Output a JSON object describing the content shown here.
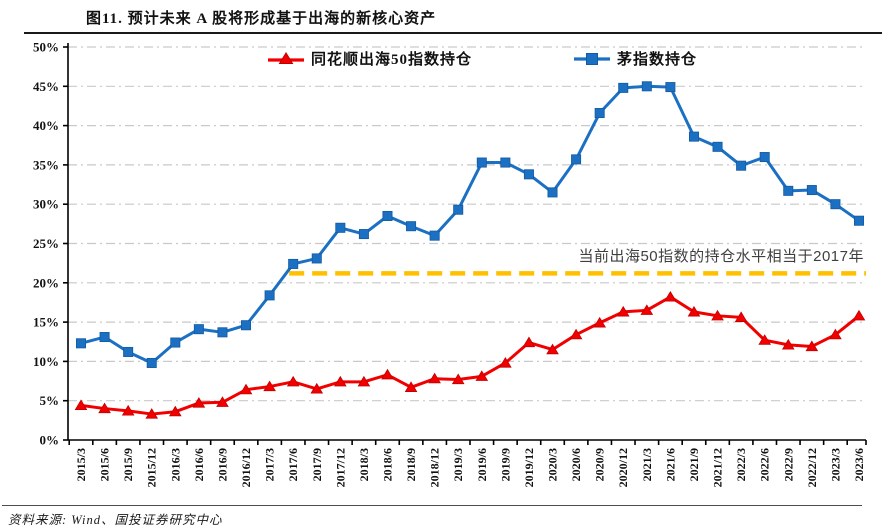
{
  "title": "图11. 预计未来 A 股将形成基于出海的新核心资产",
  "footer": {
    "source_text": "资料来源: Wind、国投证券研究中心"
  },
  "colors": {
    "red_series": "#f20000",
    "red_marker_edge": "#c00000",
    "blue_series": "#1b70c4",
    "blue_marker_edge": "#135a9e",
    "reference_line": "#ffc000",
    "gridline": "#c9c9c9",
    "axis": "#000000",
    "annotation_text": "#3f3f3f"
  },
  "chart_data": {
    "type": "line",
    "title": "图11. 预计未来 A 股将形成基于出海的新核心资产",
    "categories": [
      "2015/3",
      "2015/6",
      "2015/9",
      "2015/12",
      "2016/3",
      "2016/6",
      "2016/9",
      "2016/12",
      "2017/3",
      "2017/6",
      "2017/9",
      "2017/12",
      "2018/3",
      "2018/6",
      "2018/9",
      "2018/12",
      "2019/3",
      "2019/6",
      "2019/9",
      "2019/12",
      "2020/3",
      "2020/6",
      "2020/9",
      "2020/12",
      "2021/3",
      "2021/6",
      "2021/9",
      "2021/12",
      "2022/3",
      "2022/6",
      "2022/9",
      "2022/12",
      "2023/3",
      "2023/6"
    ],
    "series": [
      {
        "name": "同花顺出海50指数持仓",
        "marker": "triangle",
        "color": "#f20000",
        "values": [
          4.4,
          4.0,
          3.7,
          3.3,
          3.6,
          4.7,
          4.8,
          6.4,
          6.8,
          7.4,
          6.5,
          7.4,
          7.4,
          8.3,
          6.7,
          7.8,
          7.7,
          8.1,
          9.8,
          12.4,
          11.5,
          13.4,
          14.9,
          16.3,
          16.5,
          18.2,
          16.3,
          15.8,
          15.6,
          12.7,
          12.1,
          11.9,
          13.4,
          15.8
        ]
      },
      {
        "name": "茅指数持仓",
        "marker": "square",
        "color": "#1b70c4",
        "values": [
          12.3,
          13.1,
          11.2,
          9.8,
          12.4,
          14.1,
          13.7,
          14.6,
          18.4,
          22.4,
          23.1,
          27.0,
          26.2,
          28.5,
          27.2,
          26.0,
          29.3,
          35.3,
          35.3,
          33.8,
          31.5,
          35.7,
          41.6,
          44.8,
          45.0,
          44.9,
          38.6,
          37.3,
          34.9,
          36.0,
          31.7,
          31.8,
          30.0,
          27.9
        ]
      }
    ],
    "reference_line": {
      "value": 21.2,
      "color": "#ffc000",
      "start_category": "2017/6",
      "label": "当前出海50指数的持仓水平相当于2017年"
    },
    "ylim": [
      0,
      50
    ],
    "y_tick_step": 5,
    "y_tick_labels": [
      "0%",
      "5%",
      "10%",
      "15%",
      "20%",
      "25%",
      "30%",
      "35%",
      "40%",
      "45%",
      "50%"
    ],
    "grid": true,
    "legend_position": "top-center",
    "x_label_rotation": -90
  }
}
